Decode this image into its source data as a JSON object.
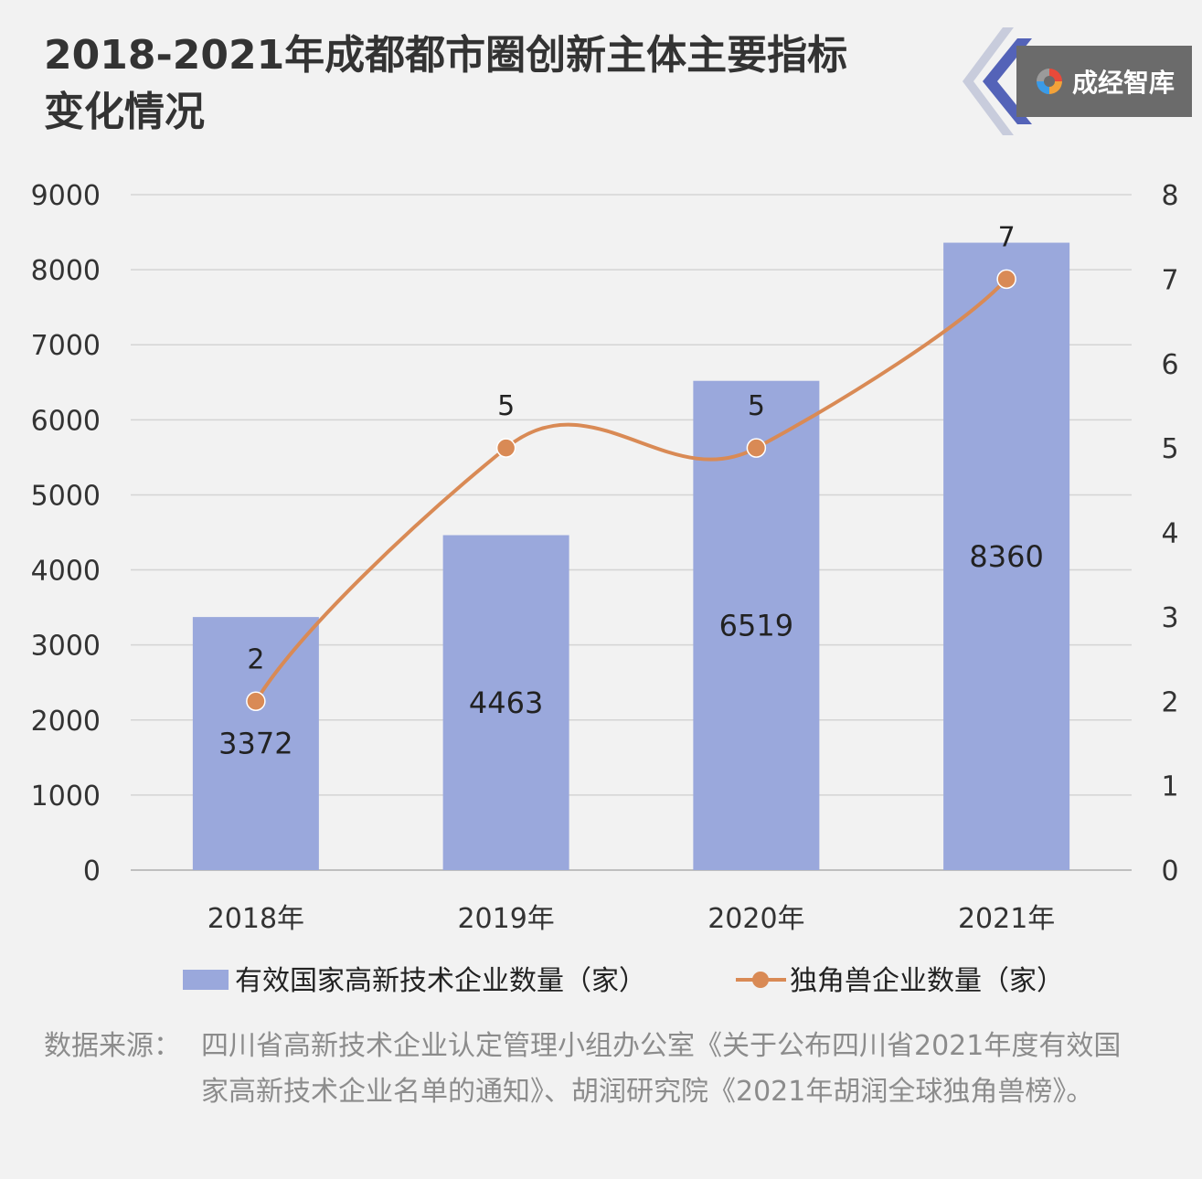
{
  "title": {
    "line1": "2018-2021年成都都市圈创新主体主要指标",
    "line2": "变化情况"
  },
  "brand": {
    "name": "成经智库",
    "icon": "brand-logo-icon",
    "colors": {
      "box": "#6b6b6b",
      "chevron_blue": "#5463b8",
      "chevron_light": "#c8ccdc"
    }
  },
  "chart_data": {
    "type": "bar",
    "categories": [
      "2018年",
      "2019年",
      "2020年",
      "2021年"
    ],
    "series": [
      {
        "name": "有效国家高新技术企业数量（家）",
        "type": "bar",
        "axis": "left",
        "values": [
          3372,
          4463,
          6519,
          8360
        ],
        "color": "#9aa8dc"
      },
      {
        "name": "独角兽企业数量（家）",
        "type": "line",
        "axis": "right",
        "values": [
          2,
          5,
          5,
          7
        ],
        "color": "#d98a55"
      }
    ],
    "y_left": {
      "min": 0,
      "max": 9000,
      "ticks": [
        0,
        1000,
        2000,
        3000,
        4000,
        5000,
        6000,
        7000,
        8000,
        9000
      ]
    },
    "y_right": {
      "min": 0,
      "max": 8,
      "ticks": [
        0,
        1,
        2,
        3,
        4,
        5,
        6,
        7,
        8
      ]
    },
    "grid": true,
    "legend_position": "bottom",
    "data_labels": true,
    "smooth_line": true
  },
  "source": {
    "label": "数据来源：",
    "text": "四川省高新技术企业认定管理小组办公室《关于公布四川省2021年度有效国家高新技术企业名单的通知》、胡润研究院《2021年胡润全球独角兽榜》。"
  }
}
